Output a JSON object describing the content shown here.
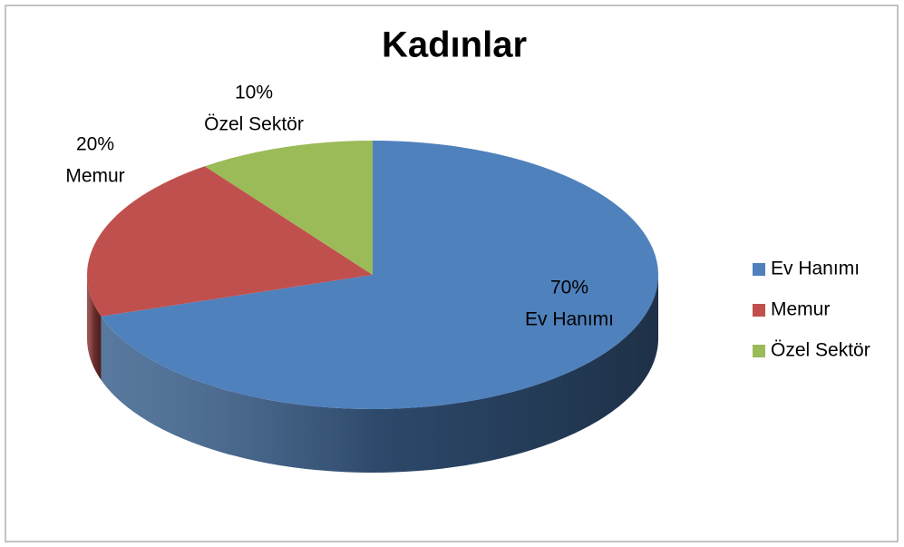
{
  "chart_data": {
    "type": "pie",
    "title": "Kadınlar",
    "categories": [
      "Ev Hanımı",
      "Memur",
      "Özel Sektör"
    ],
    "values": [
      70,
      20,
      10
    ],
    "value_labels": [
      "70%",
      "20%",
      "10%"
    ],
    "colors": [
      "#4f81bd",
      "#c0504d",
      "#9bbb59"
    ],
    "legend": "right"
  }
}
